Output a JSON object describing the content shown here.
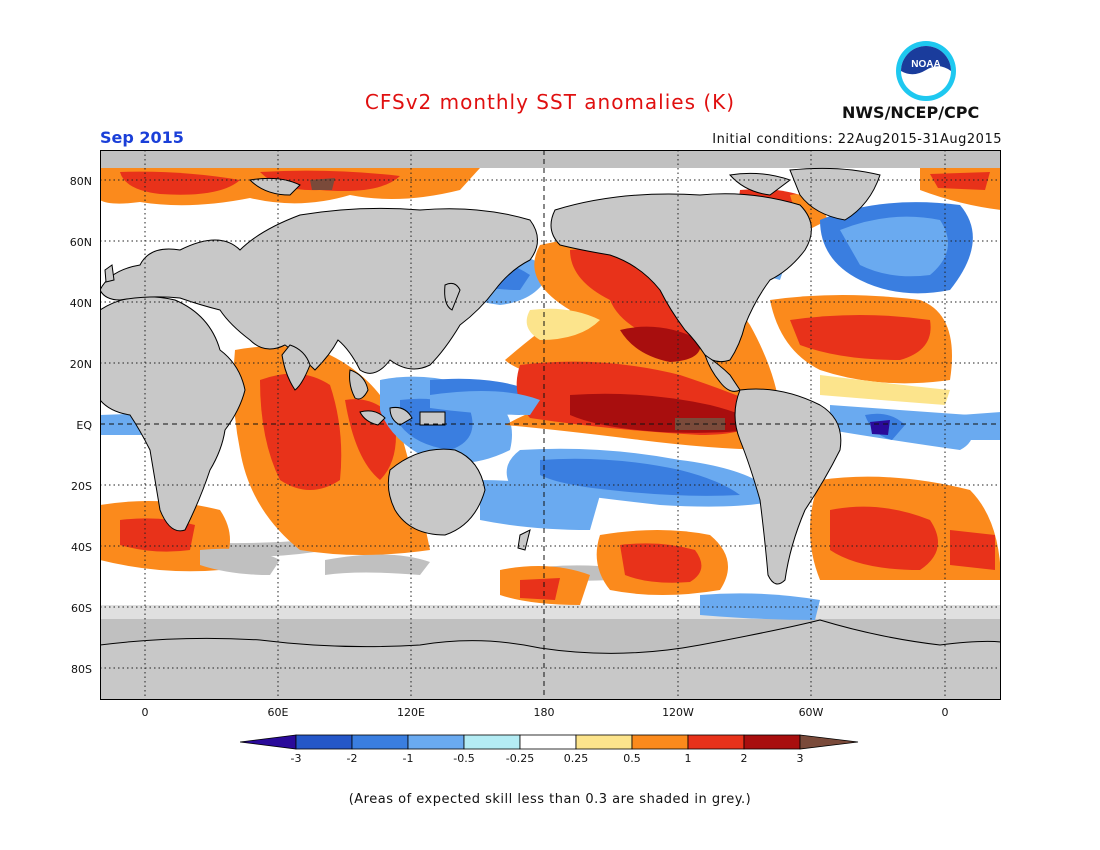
{
  "title": "CFSv2 monthly SST anomalies (K)",
  "month_label": "Sep 2015",
  "initial_conditions": "Initial conditions: 22Aug2015-31Aug2015",
  "organization": "NWS/NCEP/CPC",
  "logo_text": "NOAA",
  "skill_note": "(Areas of expected skill less than 0.3 are shaded in grey.)",
  "lat_labels": [
    "80N",
    "60N",
    "40N",
    "20N",
    "EQ",
    "20S",
    "40S",
    "60S",
    "80S"
  ],
  "lon_labels": [
    "0",
    "60E",
    "120E",
    "180",
    "120W",
    "60W",
    "0"
  ],
  "colorbar": {
    "labels": [
      "-3",
      "-2",
      "-1",
      "-0.5",
      "-0.25",
      "0.25",
      "0.5",
      "1",
      "2",
      "3"
    ],
    "colors": [
      "#2a0a9a",
      "#2457c8",
      "#3a7ee0",
      "#6aaaf0",
      "#b4ecf4",
      "#ffffff",
      "#fce48c",
      "#fb8a1c",
      "#e8321a",
      "#a80e0e",
      "#7a4a3a"
    ]
  },
  "colors": {
    "land": "#c8c8c8",
    "skill_grey": "#c0c0c0",
    "title_red": "#e01010",
    "month_blue": "#1a3fd8"
  }
}
